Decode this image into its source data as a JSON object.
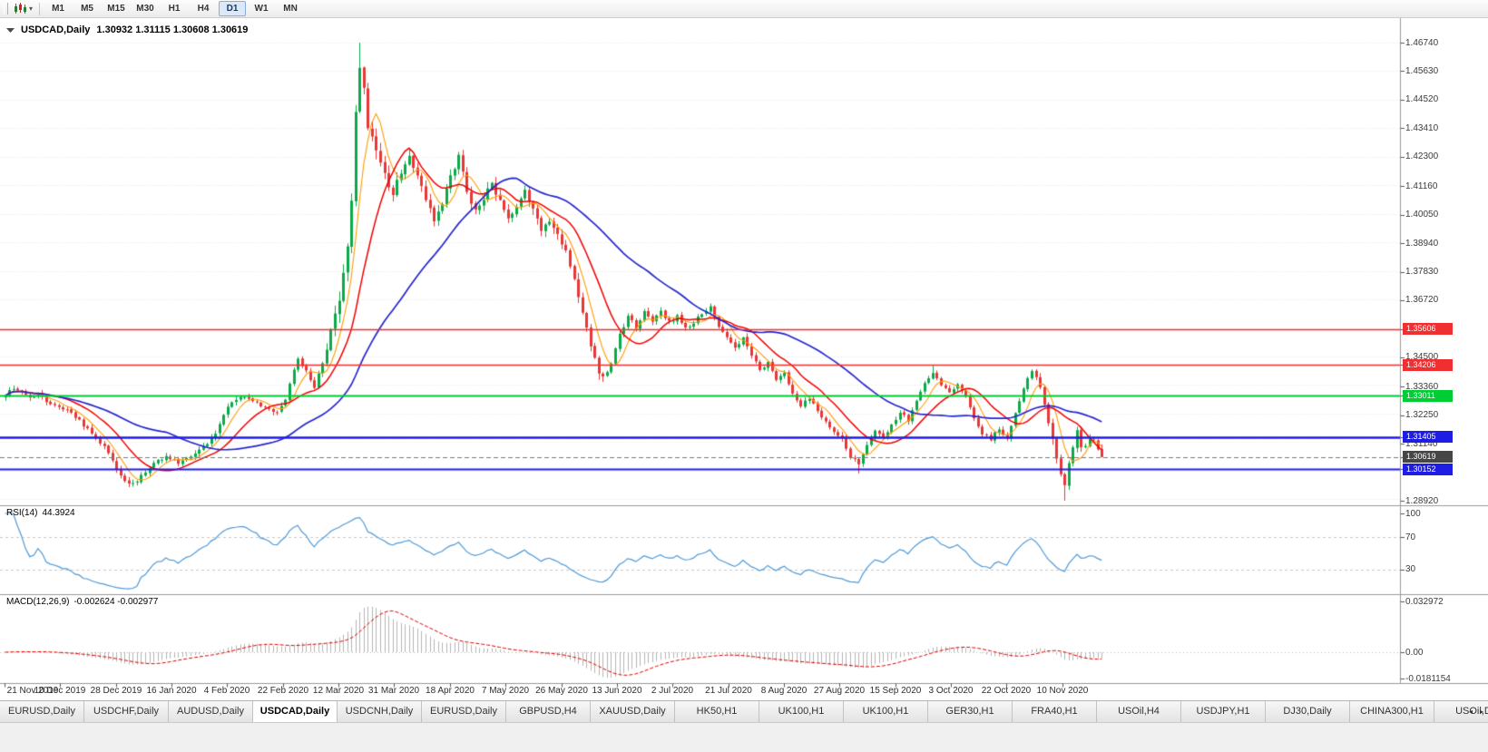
{
  "toolbar": {
    "timeframes": [
      "M1",
      "M5",
      "M15",
      "M30",
      "H1",
      "H4",
      "D1",
      "W1",
      "MN"
    ],
    "active_timeframe": "D1"
  },
  "chart": {
    "title": {
      "symbol": "USDCAD,Daily",
      "ohlc": "1.30932 1.31115 1.30608 1.30619"
    }
  },
  "price_axis": {
    "labels": [
      {
        "text": "1.46740",
        "price": 1.4674
      },
      {
        "text": "1.45630",
        "price": 1.4563
      },
      {
        "text": "1.44520",
        "price": 1.4452
      },
      {
        "text": "1.43410",
        "price": 1.4341
      },
      {
        "text": "1.42300",
        "price": 1.423
      },
      {
        "text": "1.41160",
        "price": 1.4116
      },
      {
        "text": "1.40050",
        "price": 1.4005
      },
      {
        "text": "1.38940",
        "price": 1.3894
      },
      {
        "text": "1.37830",
        "price": 1.3783
      },
      {
        "text": "1.36720",
        "price": 1.3672
      },
      {
        "text": "1.34500",
        "price": 1.345
      },
      {
        "text": "1.33360",
        "price": 1.3336
      },
      {
        "text": "1.32250",
        "price": 1.3225
      },
      {
        "text": "1.31140",
        "price": 1.3114
      },
      {
        "text": "1.28920",
        "price": 1.2892
      }
    ],
    "badges": [
      {
        "text": "1.35606",
        "price": 1.35606,
        "color": "#f03030"
      },
      {
        "text": "1.34206",
        "price": 1.34206,
        "color": "#f03030"
      },
      {
        "text": "1.33011",
        "price": 1.33011,
        "color": "#00cc33"
      },
      {
        "text": "1.31405",
        "price": 1.31405,
        "color": "#1d1de6"
      },
      {
        "text": "1.30619",
        "price": 1.30619,
        "color": "#464646"
      },
      {
        "text": "1.30152",
        "price": 1.30152,
        "color": "#1d1de6"
      }
    ]
  },
  "chart_data": {
    "type": "candlestick",
    "symbol": "USDCAD",
    "timeframe": "Daily",
    "bars": 267,
    "visible_price_range": [
      1.2874,
      1.4769
    ],
    "x_tick_labels": [
      "21 Nov 2019",
      "10 Dec 2019",
      "28 Dec 2019",
      "16 Jan 2020",
      "4 Feb 2020",
      "22 Feb 2020",
      "12 Mar 2020",
      "31 Mar 2020",
      "18 Apr 2020",
      "7 May 2020",
      "26 May 2020",
      "13 Jun 2020",
      "2 Jul 2020",
      "21 Jul 2020",
      "8 Aug 2020",
      "27 Aug 2020",
      "15 Sep 2020",
      "3 Oct 2020",
      "22 Oct 2020",
      "10 Nov 2020"
    ],
    "close_anchors": [
      [
        0,
        1.3302
      ],
      [
        2,
        1.333
      ],
      [
        4,
        1.3316
      ],
      [
        6,
        1.3294
      ],
      [
        8,
        1.3308
      ],
      [
        10,
        1.3282
      ],
      [
        13,
        1.326
      ],
      [
        16,
        1.3238
      ],
      [
        19,
        1.3186
      ],
      [
        22,
        1.314
      ],
      [
        25,
        1.3082
      ],
      [
        27,
        1.302
      ],
      [
        29,
        1.2968
      ],
      [
        31,
        1.2958
      ],
      [
        33,
        1.2986
      ],
      [
        36,
        1.3046
      ],
      [
        39,
        1.306
      ],
      [
        42,
        1.304
      ],
      [
        45,
        1.3062
      ],
      [
        48,
        1.3098
      ],
      [
        51,
        1.3155
      ],
      [
        54,
        1.3262
      ],
      [
        57,
        1.33
      ],
      [
        60,
        1.3282
      ],
      [
        63,
        1.325
      ],
      [
        66,
        1.3238
      ],
      [
        68,
        1.329
      ],
      [
        70,
        1.3398
      ],
      [
        71,
        1.3438
      ],
      [
        73,
        1.3392
      ],
      [
        75,
        1.3338
      ],
      [
        77,
        1.3425
      ],
      [
        79,
        1.3545
      ],
      [
        81,
        1.3672
      ],
      [
        83,
        1.3895
      ],
      [
        84,
        1.404
      ],
      [
        85,
        1.4385
      ],
      [
        86,
        1.456
      ],
      [
        87,
        1.449
      ],
      [
        88,
        1.4345
      ],
      [
        90,
        1.4242
      ],
      [
        92,
        1.4165
      ],
      [
        94,
        1.4085
      ],
      [
        96,
        1.4175
      ],
      [
        98,
        1.4232
      ],
      [
        100,
        1.4148
      ],
      [
        102,
        1.4058
      ],
      [
        104,
        1.3985
      ],
      [
        106,
        1.4035
      ],
      [
        108,
        1.4158
      ],
      [
        110,
        1.4225
      ],
      [
        112,
        1.4105
      ],
      [
        114,
        1.4012
      ],
      [
        116,
        1.4075
      ],
      [
        118,
        1.413
      ],
      [
        120,
        1.4058
      ],
      [
        122,
        1.3985
      ],
      [
        124,
        1.4022
      ],
      [
        126,
        1.4098
      ],
      [
        128,
        1.4032
      ],
      [
        130,
        1.3955
      ],
      [
        132,
        1.3985
      ],
      [
        134,
        1.3922
      ],
      [
        136,
        1.3855
      ],
      [
        138,
        1.3752
      ],
      [
        140,
        1.3622
      ],
      [
        142,
        1.3488
      ],
      [
        144,
        1.3398
      ],
      [
        145,
        1.3368
      ],
      [
        147,
        1.3428
      ],
      [
        149,
        1.3535
      ],
      [
        151,
        1.3612
      ],
      [
        153,
        1.3568
      ],
      [
        155,
        1.3632
      ],
      [
        157,
        1.3595
      ],
      [
        159,
        1.3625
      ],
      [
        161,
        1.3585
      ],
      [
        163,
        1.3612
      ],
      [
        165,
        1.3565
      ],
      [
        167,
        1.3585
      ],
      [
        169,
        1.3622
      ],
      [
        171,
        1.3642
      ],
      [
        173,
        1.3565
      ],
      [
        175,
        1.3525
      ],
      [
        177,
        1.3482
      ],
      [
        179,
        1.3532
      ],
      [
        181,
        1.3455
      ],
      [
        183,
        1.3405
      ],
      [
        185,
        1.3425
      ],
      [
        187,
        1.3365
      ],
      [
        189,
        1.3385
      ],
      [
        191,
        1.3312
      ],
      [
        193,
        1.3265
      ],
      [
        195,
        1.3292
      ],
      [
        197,
        1.3235
      ],
      [
        199,
        1.3195
      ],
      [
        201,
        1.3165
      ],
      [
        203,
        1.3135
      ],
      [
        205,
        1.3065
      ],
      [
        207,
        1.3038
      ],
      [
        209,
        1.3112
      ],
      [
        211,
        1.3162
      ],
      [
        213,
        1.3135
      ],
      [
        215,
        1.3182
      ],
      [
        217,
        1.3235
      ],
      [
        219,
        1.3205
      ],
      [
        221,
        1.3282
      ],
      [
        223,
        1.3352
      ],
      [
        225,
        1.3392
      ],
      [
        227,
        1.3335
      ],
      [
        229,
        1.3315
      ],
      [
        231,
        1.3342
      ],
      [
        233,
        1.3295
      ],
      [
        235,
        1.3215
      ],
      [
        237,
        1.3155
      ],
      [
        239,
        1.3132
      ],
      [
        241,
        1.3172
      ],
      [
        243,
        1.3135
      ],
      [
        245,
        1.3232
      ],
      [
        247,
        1.3335
      ],
      [
        249,
        1.3392
      ],
      [
        251,
        1.3345
      ],
      [
        253,
        1.3182
      ],
      [
        255,
        1.3062
      ],
      [
        256,
        1.2985
      ],
      [
        257,
        1.2952
      ],
      [
        258,
        1.3035
      ],
      [
        259,
        1.3105
      ],
      [
        260,
        1.3165
      ],
      [
        261,
        1.3092
      ],
      [
        262,
        1.3112
      ],
      [
        263,
        1.3128
      ],
      [
        264,
        1.3138
      ],
      [
        265,
        1.3095
      ],
      [
        266,
        1.30619
      ]
    ],
    "last_bar": {
      "open": 1.30932,
      "high": 1.31115,
      "low": 1.30608,
      "close": 1.30619
    },
    "peak": {
      "bar": 86,
      "high": 1.4674
    },
    "trough": {
      "bar": 257,
      "low": 1.2892
    },
    "forced_extra": [
      {
        "bar": 207,
        "low": 1.2998
      },
      {
        "bar": 225,
        "high": 1.3418
      },
      {
        "bar": 249,
        "high": 1.3402
      }
    ],
    "up_color": "#0ba94a",
    "down_color": "#e83737",
    "moving_averages": [
      {
        "period": 6,
        "color": "#ff9d00"
      },
      {
        "period": 14,
        "color": "#f20000"
      },
      {
        "period": 40,
        "color": "#2626cf"
      }
    ],
    "horizontal_lines": [
      {
        "price": 1.35606,
        "color": "#f03030",
        "width": 1.6
      },
      {
        "price": 1.34206,
        "color": "#f03030",
        "width": 1.6
      },
      {
        "price": 1.33011,
        "color": "#00cc33",
        "width": 2.2
      },
      {
        "price": 1.31405,
        "color": "#1d1de6",
        "width": 2.4
      },
      {
        "price": 1.30152,
        "color": "#1d1de6",
        "width": 2.0
      }
    ],
    "bid_line": {
      "price": 1.30619,
      "color": "#7a7a7a"
    },
    "current_price": "1.30619"
  },
  "indicators": {
    "rsi": {
      "name": "RSI(14)",
      "value": "44.3924",
      "period": 14,
      "color": "#4f9ad7",
      "levels": [
        {
          "text": "100",
          "value": 100
        },
        {
          "text": "70",
          "value": 70
        },
        {
          "text": "30",
          "value": 30
        }
      ]
    },
    "macd": {
      "name": "MACD(12,26,9)",
      "values": "-0.002624 -0.002977",
      "fast": 12,
      "slow": 26,
      "signal": 9,
      "histogram_color": "#b5b5b5",
      "signal_color": "#e00000",
      "axis": [
        {
          "text": "0.032972",
          "value": 0.032972
        },
        {
          "text": "0.00",
          "value": 0
        },
        {
          "text": "-0.0181154",
          "value": -0.0181154
        }
      ]
    }
  },
  "tabs": {
    "items": [
      "EURUSD,Daily",
      "USDCHF,Daily",
      "AUDUSD,Daily",
      "USDCAD,Daily",
      "USDCNH,Daily",
      "EURUSD,Daily",
      "GBPUSD,H4",
      "XAUUSD,Daily",
      "HK50,H1",
      "UK100,H1",
      "UK100,H1",
      "GER30,H1",
      "FRA40,H1",
      "USOil,H4",
      "USDJPY,H1",
      "DJ30,Daily",
      "CHINA300,H1",
      "USOil,Da"
    ],
    "active_index": 3
  }
}
